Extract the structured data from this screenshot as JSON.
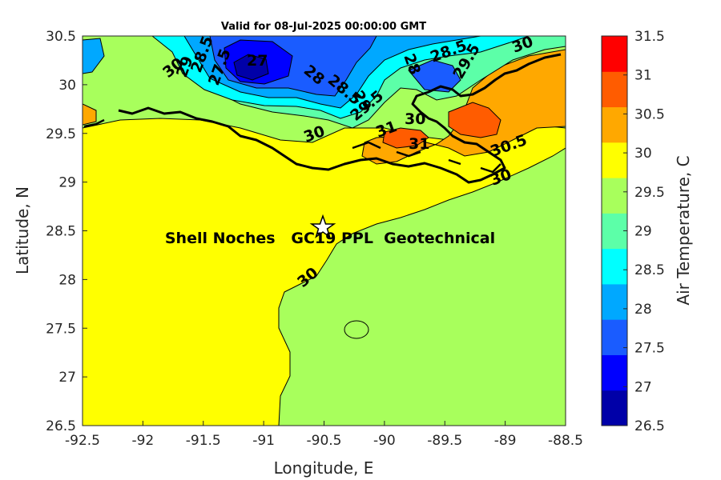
{
  "chart_data": {
    "type": "contour-map",
    "title": "Valid for 08-Jul-2025 00:00:00 GMT",
    "xlabel": "Longitude, E",
    "ylabel": "Latitude, N",
    "xlim": [
      -92.5,
      -88.5
    ],
    "ylim": [
      26.5,
      30.5
    ],
    "xticks": [
      "-92.5",
      "-92",
      "-91.5",
      "-91",
      "-90.5",
      "-90",
      "-89.5",
      "-89",
      "-88.5"
    ],
    "yticks": [
      "26.5",
      "27",
      "27.5",
      "28",
      "28.5",
      "29",
      "29.5",
      "30",
      "30.5"
    ],
    "variable": "Air Temperature, C",
    "colorbar": {
      "label": "Air Temperature, C",
      "ticks": [
        "26.5",
        "27",
        "27.5",
        "28",
        "28.5",
        "29",
        "29.5",
        "30",
        "30.5",
        "31",
        "31.5"
      ],
      "colors": [
        "#0000a8",
        "#0000ff",
        "#1a5cff",
        "#00a8ff",
        "#00ffff",
        "#5cffa8",
        "#a8ff5c",
        "#ffff00",
        "#ffa800",
        "#ff5c00",
        "#ff0000"
      ]
    },
    "site": {
      "name": "Shell Noches   GC19 PPL  Geotechnical",
      "lon": -90.53,
      "lat": 28.55,
      "marker": "star"
    },
    "contour_labels": [
      "27",
      "27.5",
      "28",
      "28.5",
      "29",
      "29.5",
      "30",
      "30.5",
      "31"
    ],
    "grid": false
  }
}
